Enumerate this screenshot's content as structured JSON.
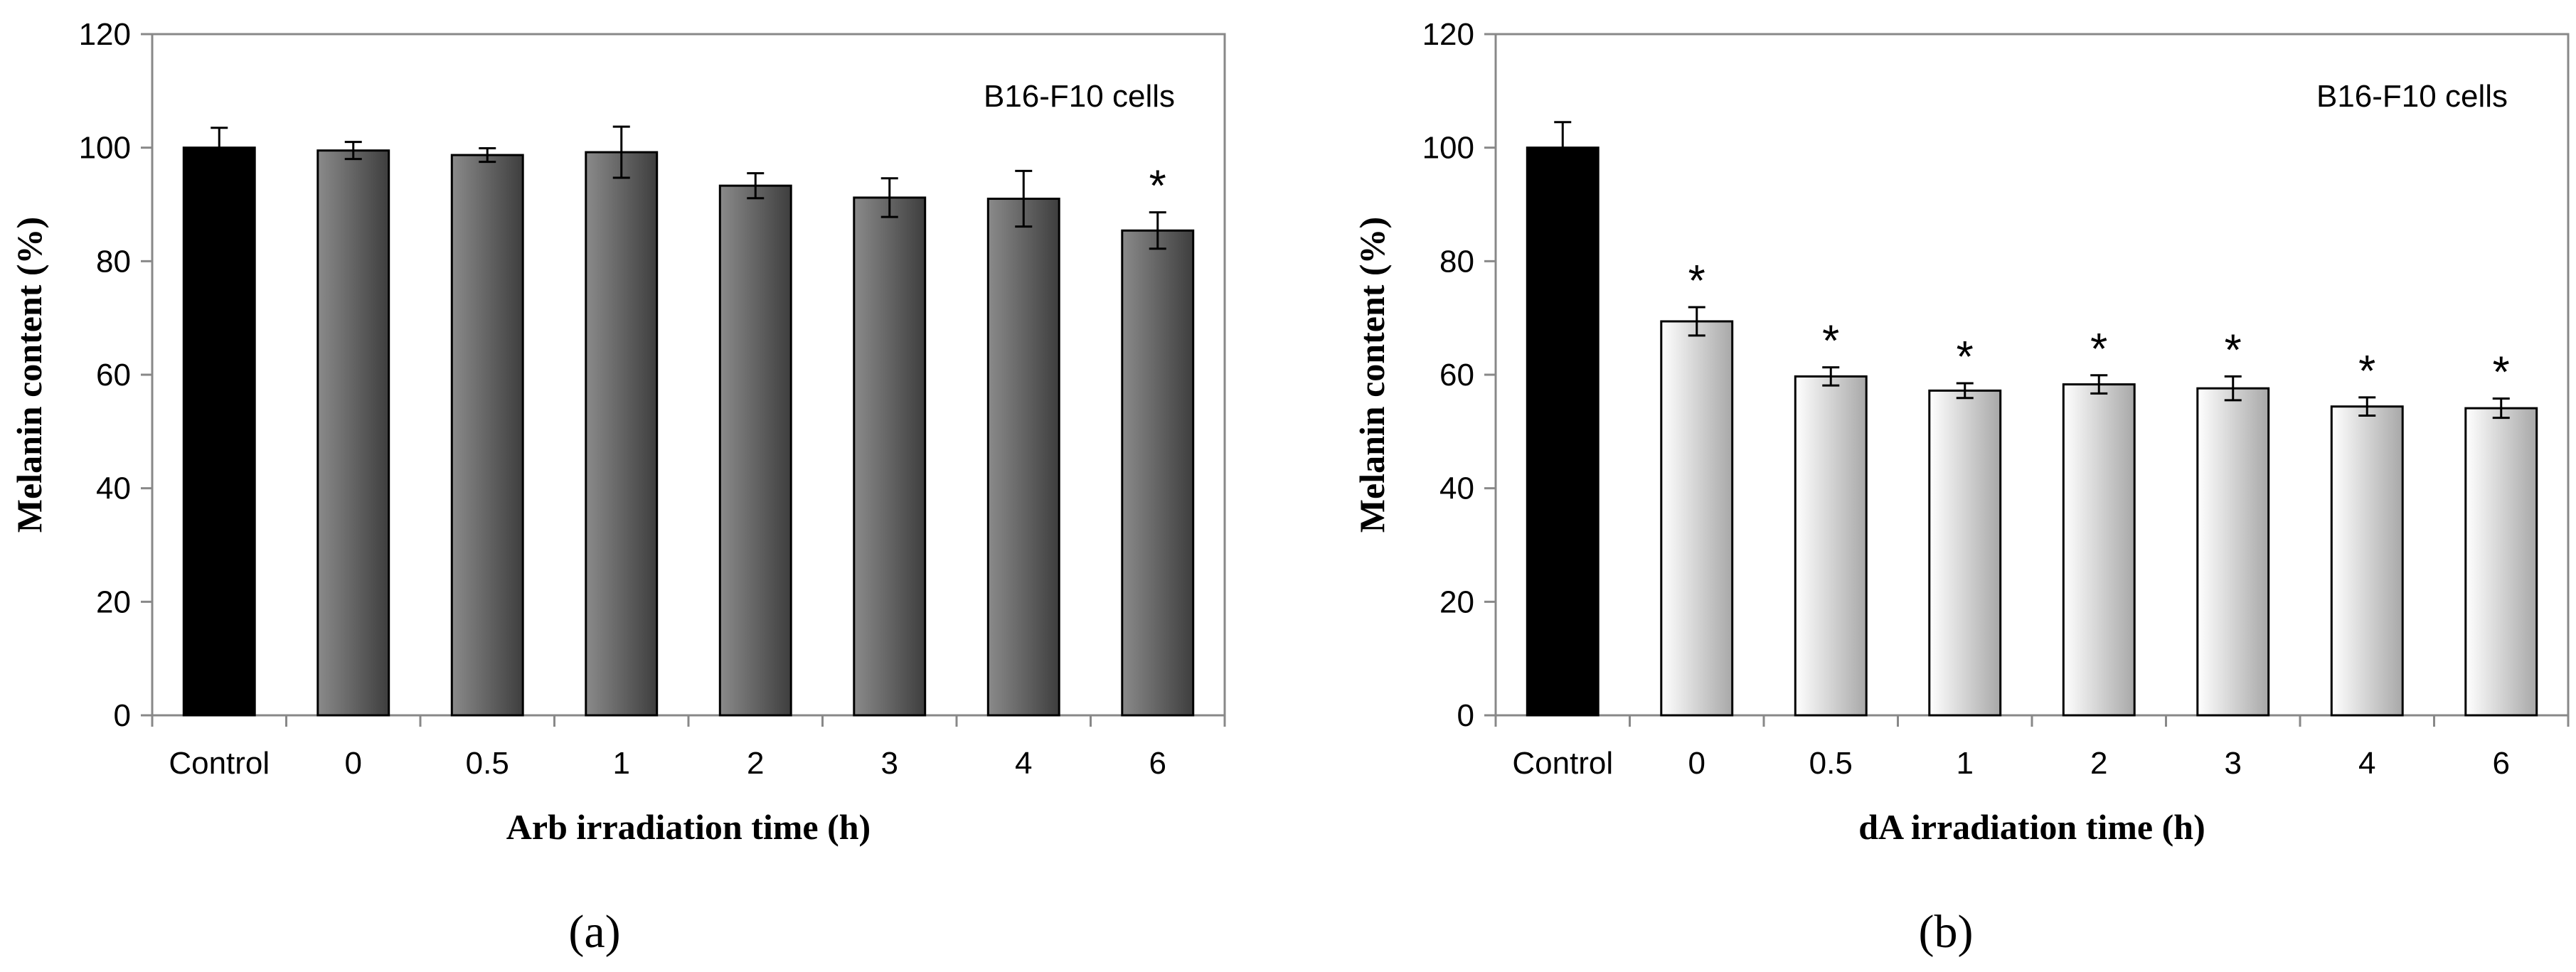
{
  "chart_data": [
    {
      "type": "bar",
      "panel_label": "(a)",
      "annotation": "B16-F10 cells",
      "ylabel": "Melanin content (%)",
      "xlabel": "Arb irradiation time (h)",
      "categories": [
        "Control",
        "0",
        "0.5",
        "1",
        "2",
        "3",
        "4",
        "6"
      ],
      "values": [
        100,
        99.5,
        98.7,
        99.2,
        93.3,
        91.2,
        91.0,
        85.4
      ],
      "errors": [
        3.5,
        1.5,
        1.2,
        4.5,
        2.2,
        3.4,
        4.9,
        3.2
      ],
      "significance": [
        "",
        "",
        "",
        "",
        "",
        "",
        "",
        "*"
      ],
      "ylim": [
        0,
        120
      ],
      "yticks": [
        "0",
        "20",
        "40",
        "60",
        "80",
        "100",
        "120"
      ],
      "bar_style": [
        "control",
        "dark",
        "dark",
        "dark",
        "dark",
        "dark",
        "dark",
        "dark"
      ]
    },
    {
      "type": "bar",
      "panel_label": "(b)",
      "annotation": "B16-F10 cells",
      "ylabel": "Melanin content (%)",
      "xlabel": "dA irradiation time (h)",
      "categories": [
        "Control",
        "0",
        "0.5",
        "1",
        "2",
        "3",
        "4",
        "6"
      ],
      "values": [
        100,
        69.4,
        59.7,
        57.2,
        58.3,
        57.6,
        54.4,
        54.1
      ],
      "errors": [
        4.5,
        2.5,
        1.6,
        1.3,
        1.6,
        2.1,
        1.6,
        1.7
      ],
      "significance": [
        "",
        "*",
        "*",
        "*",
        "*",
        "*",
        "*",
        "*"
      ],
      "ylim": [
        0,
        120
      ],
      "yticks": [
        "0",
        "20",
        "40",
        "60",
        "80",
        "100",
        "120"
      ],
      "bar_style": [
        "control",
        "light",
        "light",
        "light",
        "light",
        "light",
        "light",
        "light"
      ]
    }
  ],
  "colors": {
    "control": "#000000",
    "dark_light_end": "#8a8a8a",
    "dark_dark_end": "#3e3e3e",
    "light_light_end": "#ffffff",
    "light_dark_end": "#a8a8a8",
    "axis": "#888888",
    "text": "#000000"
  }
}
